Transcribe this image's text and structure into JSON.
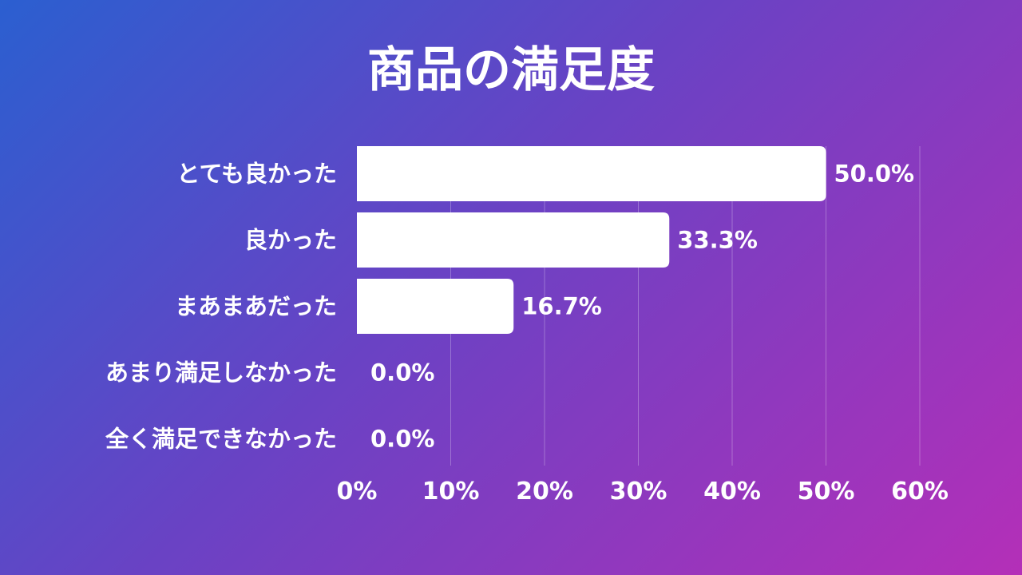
{
  "chart_data": {
    "type": "bar",
    "orientation": "horizontal",
    "title": "商品の満足度",
    "categories": [
      "とても良かった",
      "良かった",
      "まあまあだった",
      "あまり満足しなかった",
      "全く満足できなかった"
    ],
    "values": [
      50.0,
      33.3,
      16.7,
      0.0,
      0.0
    ],
    "value_labels": [
      "50.0%",
      "33.3%",
      "16.7%",
      "0.0%",
      "0.0%"
    ],
    "xlim": [
      0,
      60
    ],
    "x_ticks": [
      0,
      10,
      20,
      30,
      40,
      50,
      60
    ],
    "x_tick_labels": [
      "0%",
      "10%",
      "20%",
      "30%",
      "40%",
      "50%",
      "60%"
    ],
    "grid": true,
    "bar_color": "#ffffff"
  }
}
